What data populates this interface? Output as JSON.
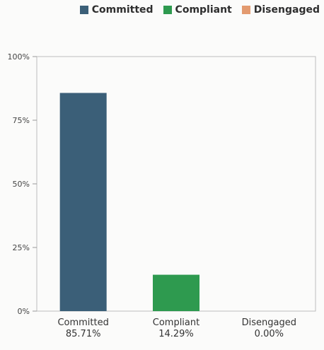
{
  "chart_data": {
    "type": "bar",
    "categories": [
      "Committed",
      "Compliant",
      "Disengaged"
    ],
    "values": [
      85.71,
      14.29,
      0.0
    ],
    "value_labels": [
      "85.71%",
      "14.29%",
      "0.00%"
    ],
    "colors": [
      "#3b5f78",
      "#2e9a4f",
      "#e39a6f"
    ],
    "legend": {
      "placement": "top-right",
      "items": [
        {
          "label": "Committed",
          "color": "#3b5f78"
        },
        {
          "label": "Compliant",
          "color": "#2e9a4f"
        },
        {
          "label": "Disengaged",
          "color": "#e39a6f"
        }
      ]
    },
    "yticks": [
      0,
      25,
      50,
      75,
      100
    ],
    "ytick_labels": [
      "0%",
      "25%",
      "50%",
      "75%",
      "100%"
    ],
    "ylim": [
      0,
      100
    ],
    "grid": false,
    "title": "",
    "xlabel": "",
    "ylabel": ""
  }
}
